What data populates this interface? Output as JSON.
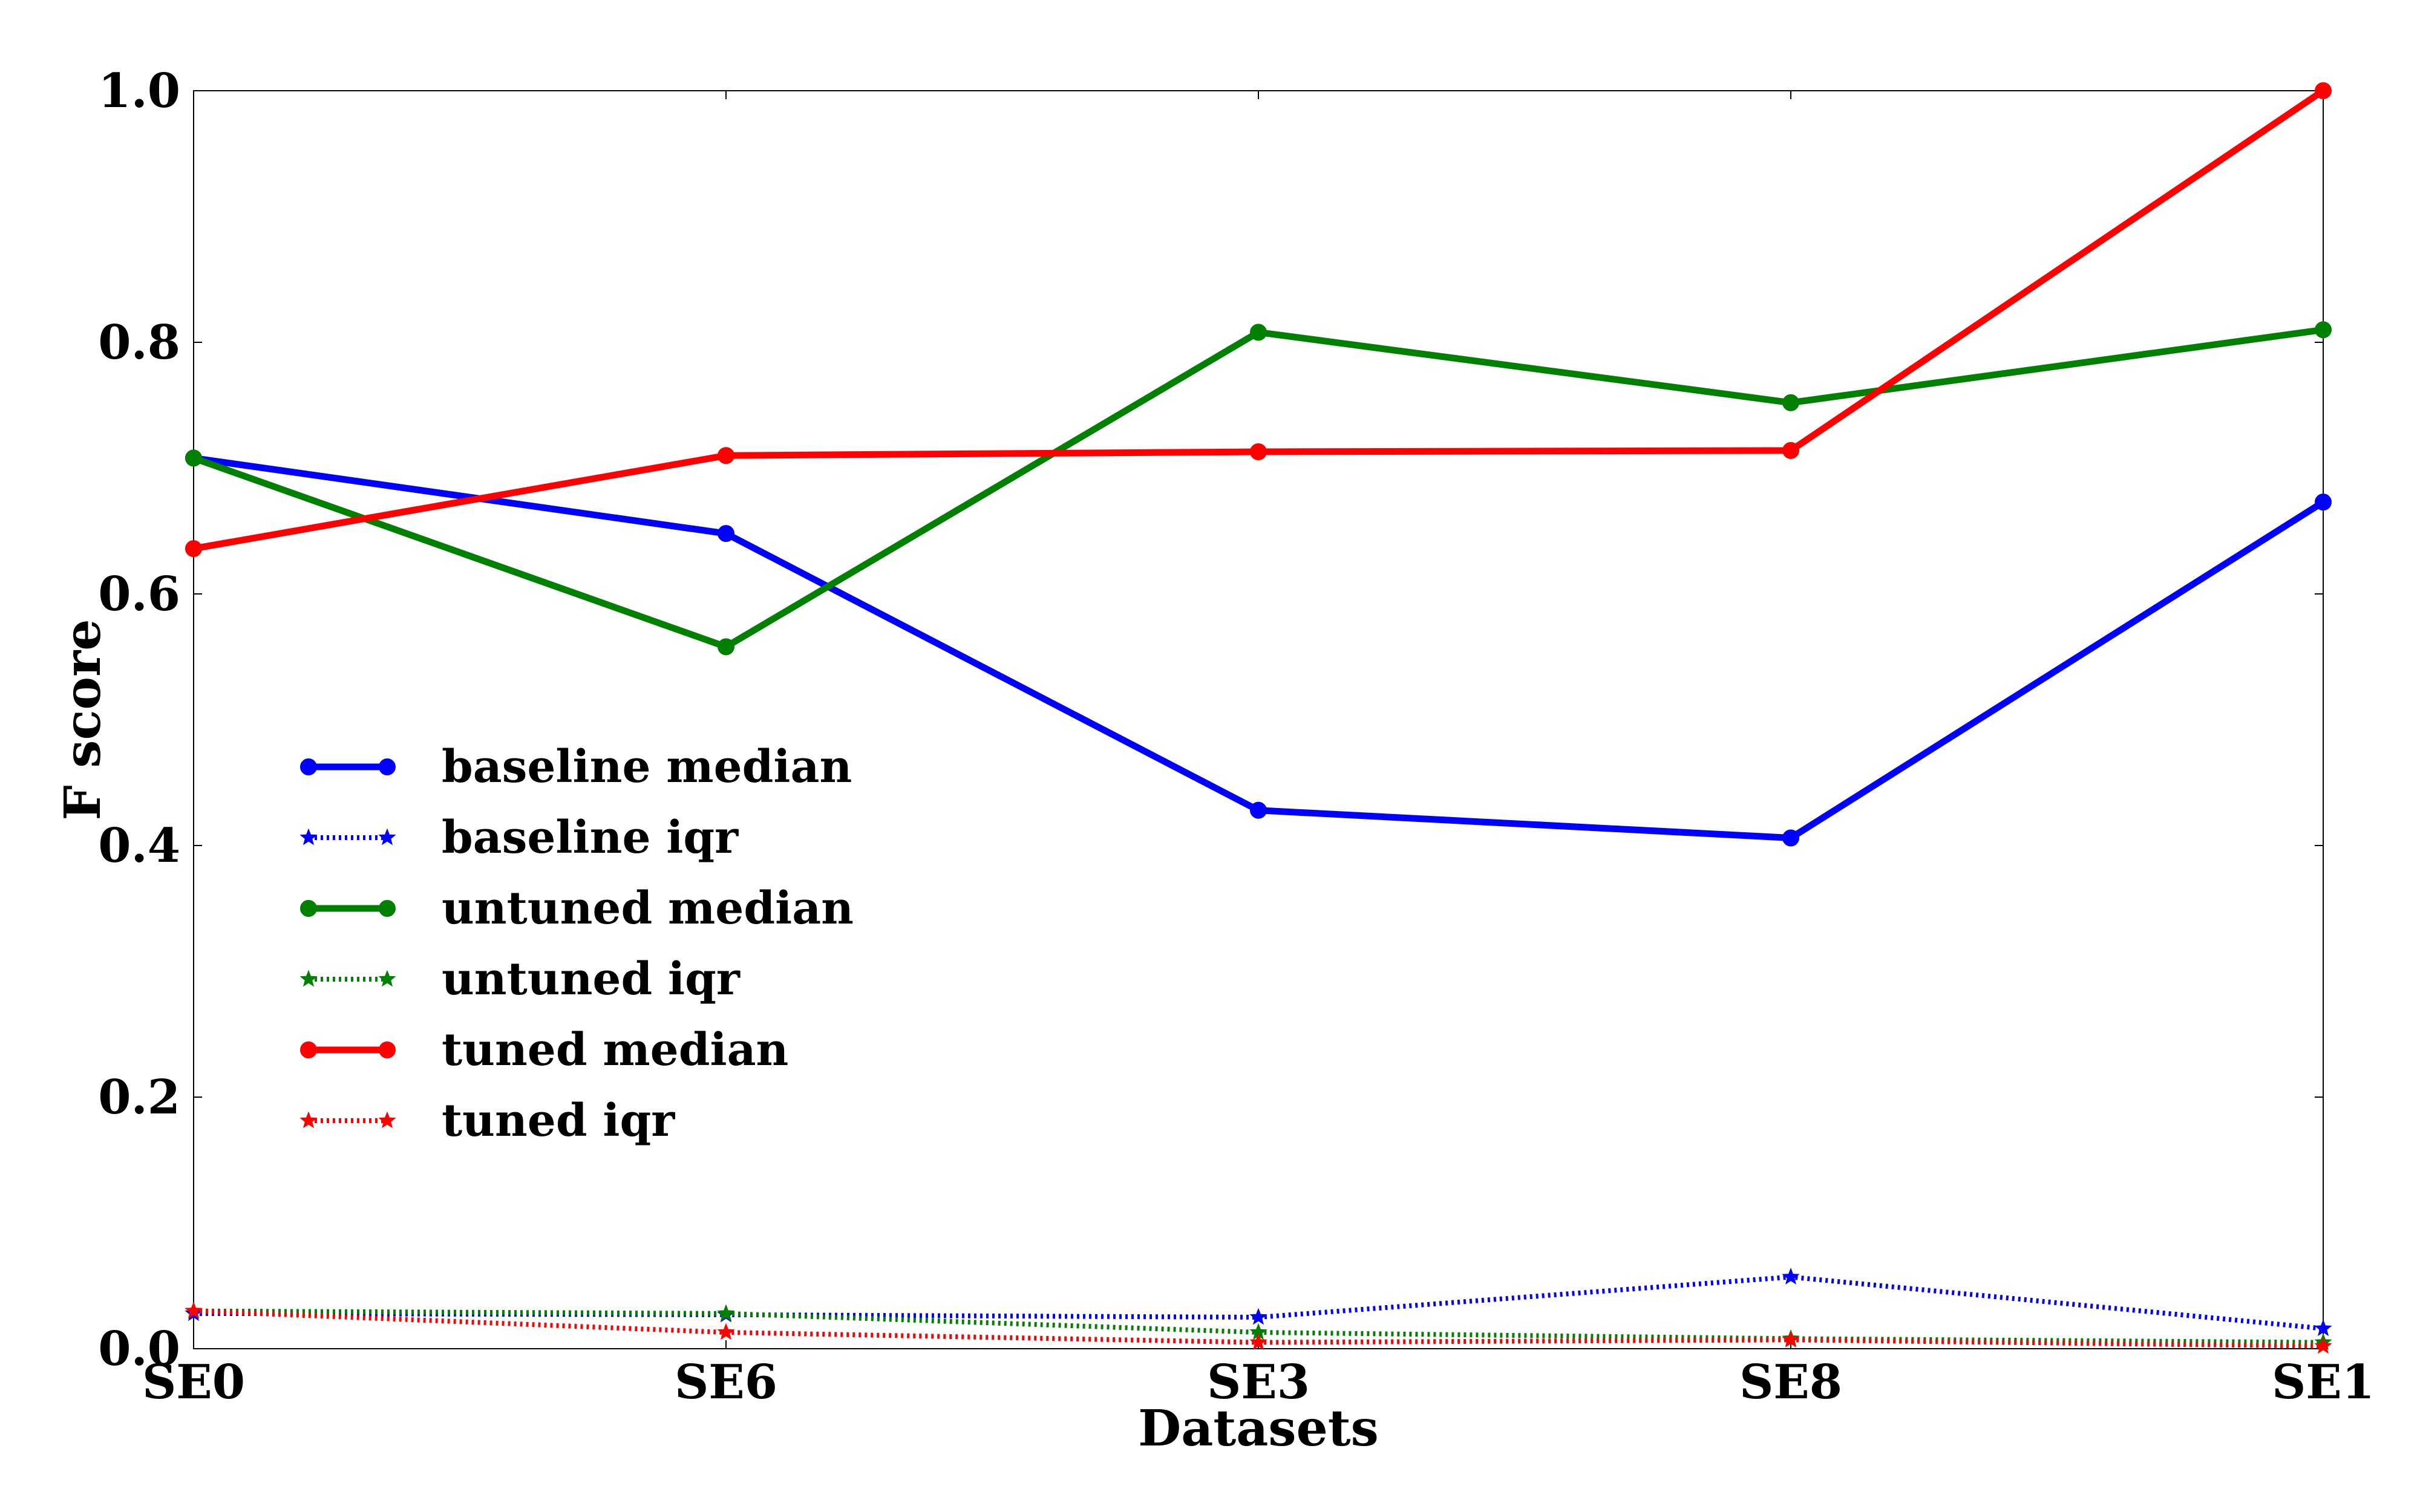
{
  "chart_data": {
    "type": "line",
    "title": "",
    "xlabel": "Datasets",
    "ylabel": "F score",
    "categories": [
      "SE0",
      "SE6",
      "SE3",
      "SE8",
      "SE1"
    ],
    "ylim": [
      0.0,
      1.0
    ],
    "yticks": [
      "0.0",
      "0.2",
      "0.4",
      "0.6",
      "0.8",
      "1.0"
    ],
    "grid": false,
    "legend_position": "center-left",
    "series": [
      {
        "name": "baseline median",
        "color": "#0000ff",
        "style": "solid",
        "marker": "circle",
        "values": [
          0.708,
          0.648,
          0.428,
          0.406,
          0.673
        ]
      },
      {
        "name": "baseline iqr",
        "color": "#0000ff",
        "style": "dotted",
        "marker": "star",
        "values": [
          0.028,
          0.027,
          0.025,
          0.057,
          0.016
        ]
      },
      {
        "name": "untuned median",
        "color": "#008000",
        "style": "solid",
        "marker": "circle",
        "values": [
          0.708,
          0.558,
          0.808,
          0.752,
          0.81
        ]
      },
      {
        "name": "untuned iqr",
        "color": "#008000",
        "style": "dotted",
        "marker": "star",
        "values": [
          0.03,
          0.028,
          0.013,
          0.008,
          0.005
        ]
      },
      {
        "name": "tuned median",
        "color": "#ff0000",
        "style": "solid",
        "marker": "circle",
        "values": [
          0.636,
          0.71,
          0.713,
          0.714,
          1.0
        ]
      },
      {
        "name": "tuned iqr",
        "color": "#ff0000",
        "style": "dotted",
        "marker": "star",
        "values": [
          0.03,
          0.013,
          0.005,
          0.007,
          0.002
        ]
      }
    ]
  }
}
